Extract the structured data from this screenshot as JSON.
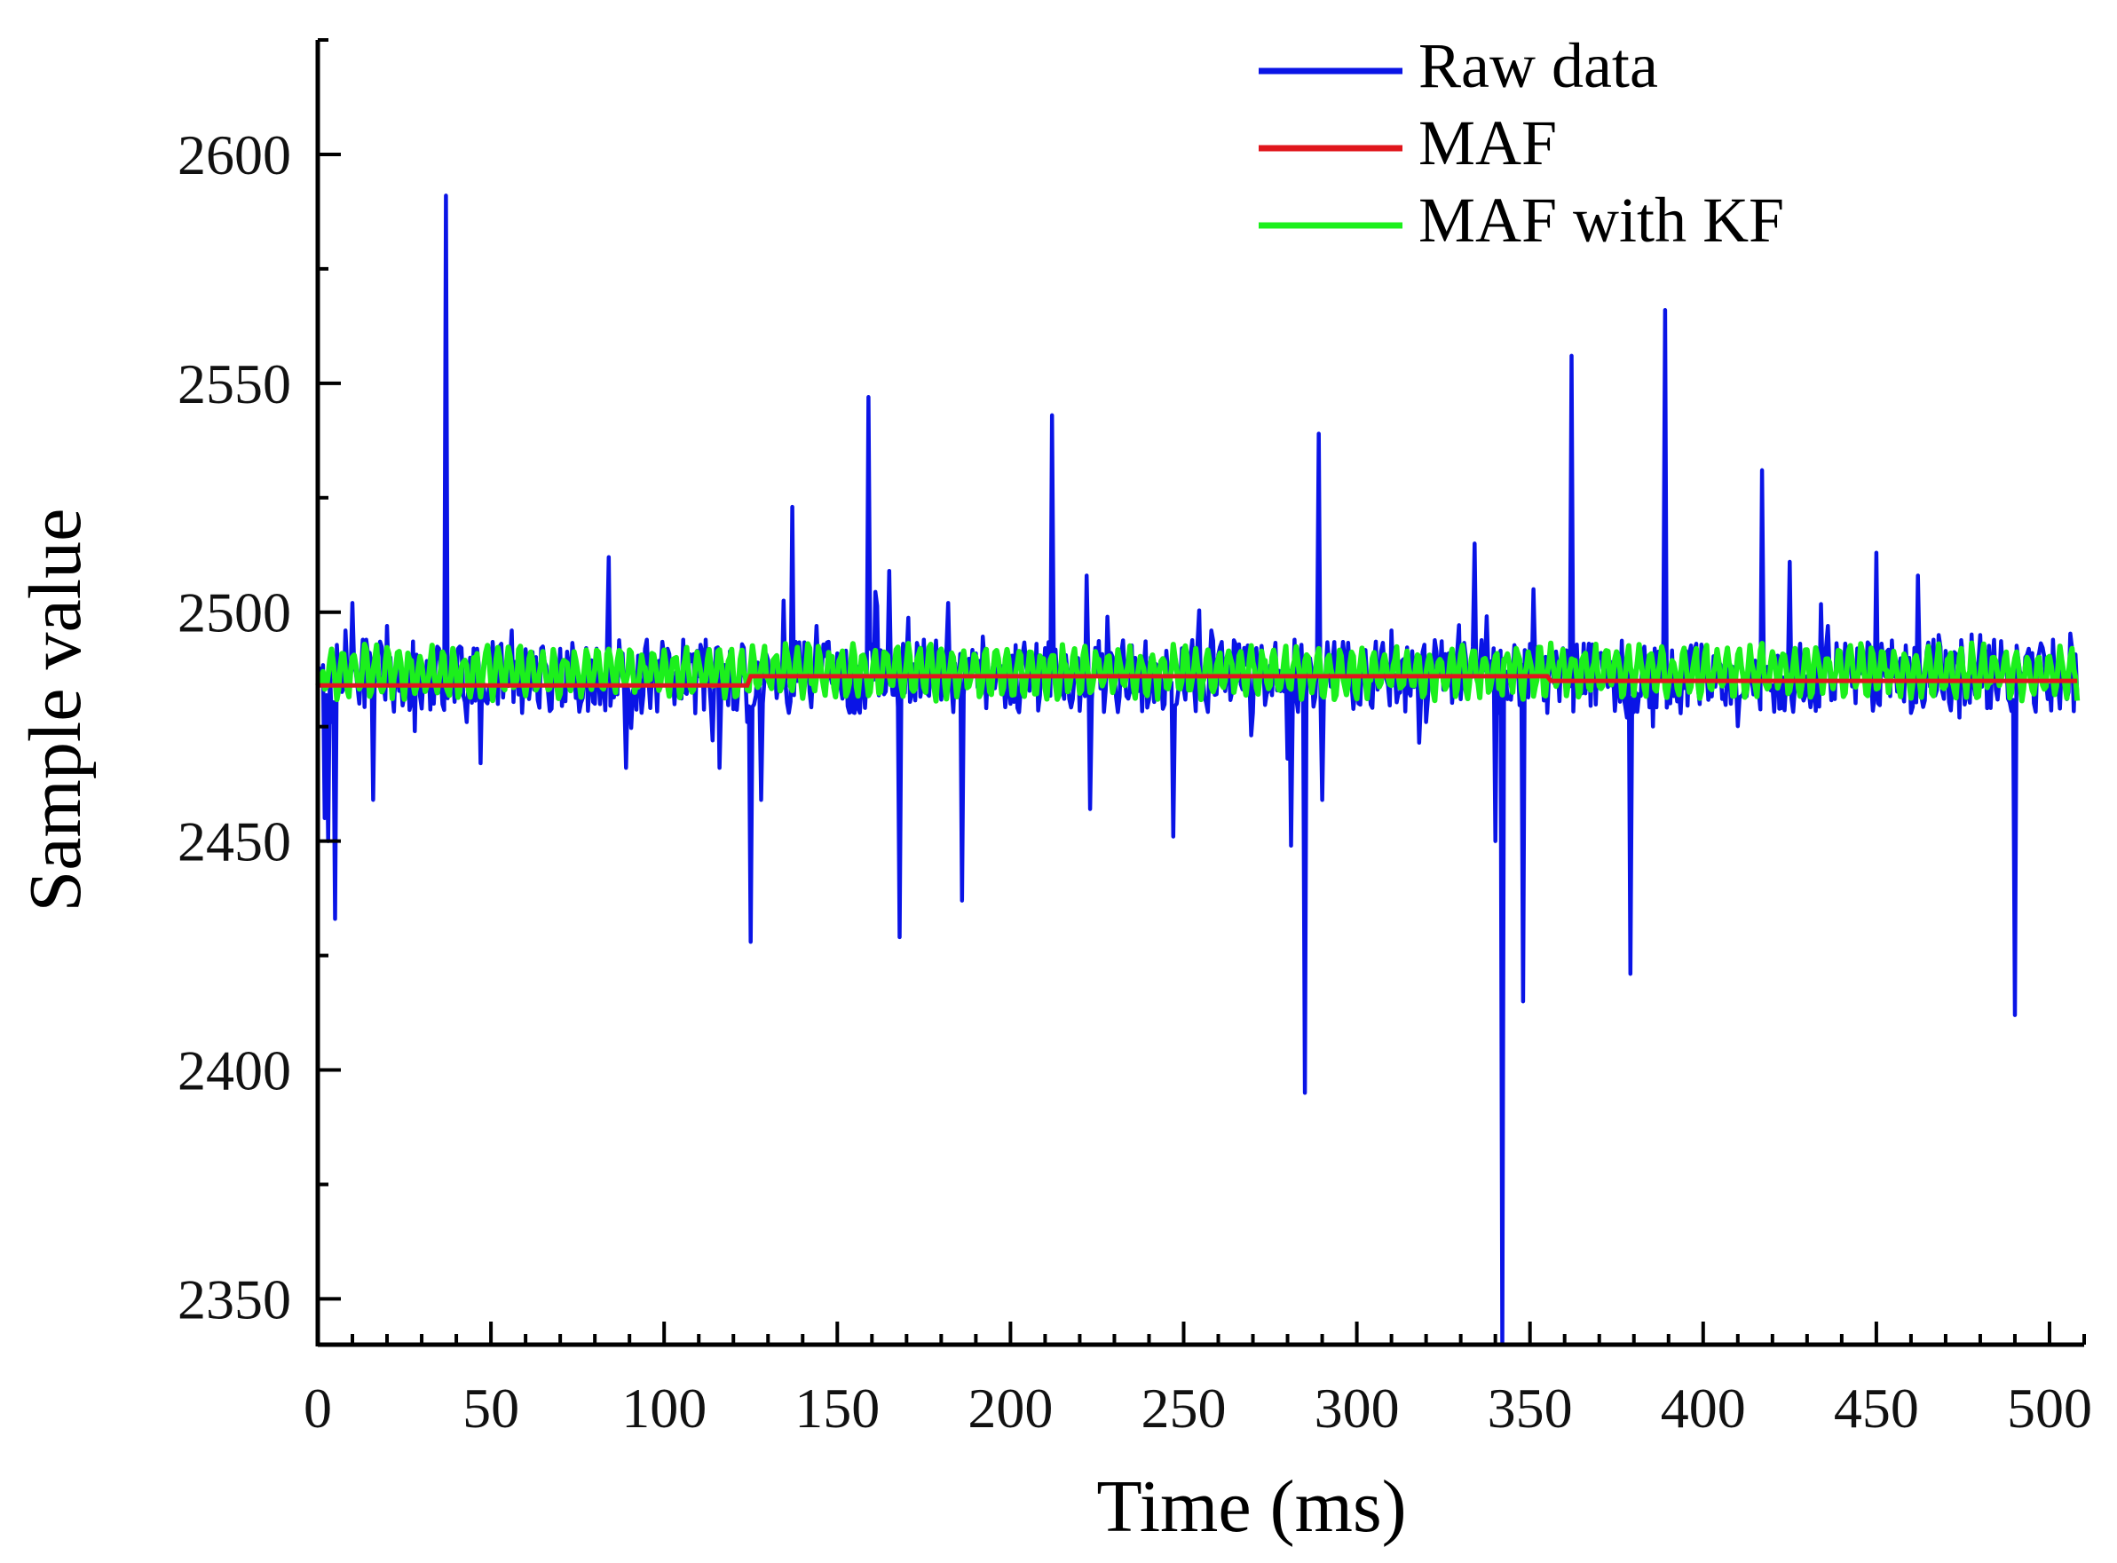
{
  "chart_data": {
    "type": "line",
    "title": "",
    "xlabel": "Time (ms)",
    "ylabel": "Sample value",
    "xlim": [
      0,
      510
    ],
    "ylim": [
      2340,
      2625
    ],
    "x_ticks": [
      0,
      50,
      100,
      150,
      200,
      250,
      300,
      350,
      400,
      450,
      500
    ],
    "x_tick_labels": [
      "0",
      "50",
      "100",
      "150",
      "200",
      "250",
      "300",
      "350",
      "400",
      "450",
      "500"
    ],
    "x_minor_step": 10,
    "y_ticks": [
      2350,
      2400,
      2450,
      2500,
      2550,
      2600
    ],
    "y_tick_labels": [
      "2350",
      "2400",
      "2450",
      "2500",
      "2550",
      "2600"
    ],
    "y_minor_step": 25,
    "grid": false,
    "legend_position": "top-right",
    "series": [
      {
        "name": "Raw data",
        "color": "#0a14e6",
        "baseline": 2486,
        "noise_amplitude": 8,
        "sample_step": 0.5,
        "spikes": [
          [
            1,
            2484
          ],
          [
            2,
            2455
          ],
          [
            3,
            2450
          ],
          [
            4,
            2476
          ],
          [
            5,
            2433
          ],
          [
            8,
            2496
          ],
          [
            10,
            2502
          ],
          [
            14,
            2494
          ],
          [
            16,
            2459
          ],
          [
            20,
            2497
          ],
          [
            28,
            2474
          ],
          [
            35,
            2492
          ],
          [
            37,
            2591
          ],
          [
            43,
            2476
          ],
          [
            46,
            2492
          ],
          [
            47,
            2467
          ],
          [
            56,
            2496
          ],
          [
            59,
            2478
          ],
          [
            70,
            2492
          ],
          [
            80,
            2480
          ],
          [
            84,
            2512
          ],
          [
            88,
            2491
          ],
          [
            89,
            2466
          ],
          [
            95,
            2494
          ],
          [
            101,
            2492
          ],
          [
            110,
            2486
          ],
          [
            114,
            2472
          ],
          [
            116,
            2466
          ],
          [
            124,
            2476
          ],
          [
            125,
            2428
          ],
          [
            127,
            2489
          ],
          [
            128,
            2459
          ],
          [
            136,
            2478
          ],
          [
            137,
            2523
          ],
          [
            144,
            2497
          ],
          [
            150,
            2491
          ],
          [
            155,
            2478
          ],
          [
            159,
            2547
          ],
          [
            163,
            2491
          ],
          [
            165,
            2509
          ],
          [
            168,
            2429
          ],
          [
            175,
            2494
          ],
          [
            182,
            2502
          ],
          [
            186,
            2437
          ],
          [
            190,
            2491
          ],
          [
            200,
            2480
          ],
          [
            212,
            2543
          ],
          [
            218,
            2481
          ],
          [
            222,
            2508
          ],
          [
            223,
            2457
          ],
          [
            228,
            2499
          ],
          [
            236,
            2490
          ],
          [
            246,
            2485
          ],
          [
            247,
            2451
          ],
          [
            258,
            2496
          ],
          [
            265,
            2493
          ],
          [
            270,
            2478
          ],
          [
            276,
            2490
          ],
          [
            280,
            2468
          ],
          [
            281,
            2449
          ],
          [
            282,
            2494
          ],
          [
            285,
            2395
          ],
          [
            289,
            2539
          ],
          [
            290,
            2459
          ],
          [
            300,
            2486
          ],
          [
            310,
            2496
          ],
          [
            320,
            2476
          ],
          [
            330,
            2481
          ],
          [
            334,
            2515
          ],
          [
            340,
            2450
          ],
          [
            341,
            2478
          ],
          [
            342,
            2340
          ],
          [
            345,
            2486
          ],
          [
            348,
            2415
          ],
          [
            351,
            2505
          ],
          [
            355,
            2478
          ],
          [
            362,
            2556
          ],
          [
            370,
            2490
          ],
          [
            378,
            2477
          ],
          [
            379,
            2421
          ],
          [
            385,
            2490
          ],
          [
            389,
            2566
          ],
          [
            392,
            2484
          ],
          [
            400,
            2490
          ],
          [
            408,
            2480
          ],
          [
            417,
            2531
          ],
          [
            420,
            2484
          ],
          [
            425,
            2511
          ],
          [
            430,
            2486
          ],
          [
            436,
            2497
          ],
          [
            450,
            2513
          ],
          [
            455,
            2486
          ],
          [
            460,
            2478
          ],
          [
            462,
            2508
          ],
          [
            468,
            2495
          ],
          [
            474,
            2477
          ],
          [
            480,
            2495
          ],
          [
            487,
            2490
          ],
          [
            490,
            2412
          ],
          [
            494,
            2492
          ],
          [
            500,
            2484
          ],
          [
            505,
            2481
          ],
          [
            508,
            2482
          ]
        ]
      },
      {
        "name": "MAF",
        "color": "#e0161c",
        "x": [
          0,
          124,
          125,
          355,
          356,
          508
        ],
        "values": [
          2484,
          2484,
          2486,
          2486,
          2485,
          2485
        ]
      },
      {
        "name": "MAF with KF",
        "color": "#1cf01c",
        "baseline": 2487,
        "oscillation_amplitude": 4.5,
        "oscillation_period": 3.2,
        "sample_step": 0.5
      }
    ]
  }
}
